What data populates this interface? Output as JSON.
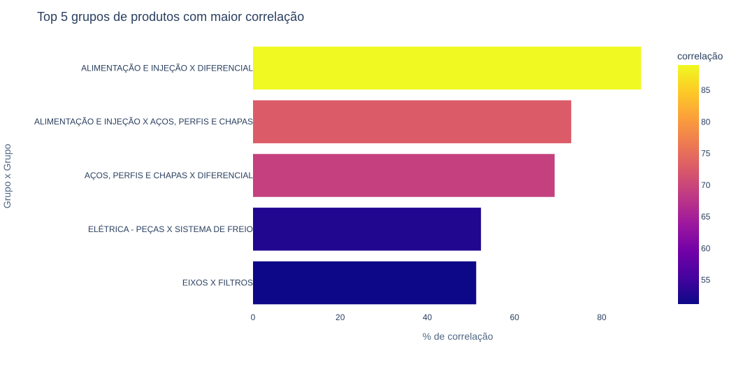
{
  "chart_data": {
    "type": "bar",
    "orientation": "horizontal",
    "title": "Top 5 grupos de produtos com maior correlação",
    "xlabel": "% de correlação",
    "ylabel": "Grupo x Grupo",
    "xlim": [
      0,
      89
    ],
    "xticks": [
      0,
      20,
      40,
      60,
      80
    ],
    "grid": false,
    "categories": [
      "ALIMENTAÇÃO E INJEÇÃO X DIFERENCIAL",
      "ALIMENTAÇÃO E INJEÇÃO X AÇOS, PERFIS E CHAPAS",
      "AÇOS, PERFIS E CHAPAS X DIFERENCIAL",
      "ELÉTRICA - PEÇAS X SISTEMA DE FREIO",
      "EIXOS X FILTROS"
    ],
    "values": [
      89,
      73,
      69.2,
      52.3,
      51.2
    ],
    "colors": [
      "#f0f921",
      "#db5c68",
      "#c5407e",
      "#21078f",
      "#0d0887"
    ],
    "colorbar": {
      "title": "correlação",
      "range": [
        51.2,
        89
      ],
      "ticks": [
        55,
        60,
        65,
        70,
        75,
        80,
        85
      ],
      "scale": [
        "#0d0887",
        "#46039f",
        "#7201a8",
        "#9c179e",
        "#bd3786",
        "#d8576b",
        "#ed7953",
        "#fb9f3a",
        "#fdca26",
        "#f0f921"
      ]
    }
  }
}
